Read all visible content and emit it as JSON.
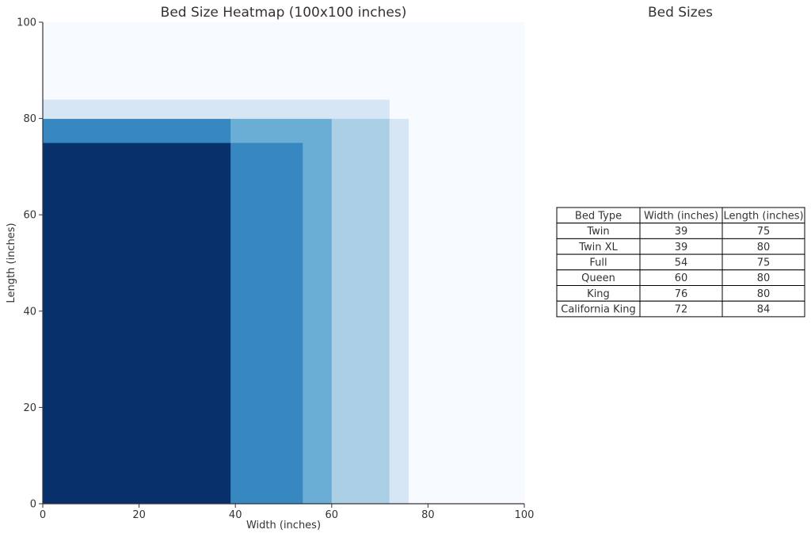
{
  "chart_data": [
    {
      "type": "heatmap",
      "title": "Bed Size Heatmap (100x100 inches)",
      "xlabel": "Width (inches)",
      "ylabel": "Length (inches)",
      "xlim": [
        0,
        100
      ],
      "ylim": [
        0,
        100
      ],
      "x_ticks": [
        "0",
        "20",
        "40",
        "60",
        "80",
        "100"
      ],
      "y_ticks": [
        "0",
        "20",
        "40",
        "60",
        "80",
        "100"
      ],
      "colormap": "Blues",
      "color_scale": {
        "min": 0,
        "max": 6
      },
      "regions_description": "count of beds covering each cell of a 100x100 grid",
      "beds": [
        {
          "name": "Twin",
          "width": 39,
          "length": 75
        },
        {
          "name": "Twin XL",
          "width": 39,
          "length": 80
        },
        {
          "name": "Full",
          "width": 54,
          "length": 75
        },
        {
          "name": "Queen",
          "width": 60,
          "length": 80
        },
        {
          "name": "King",
          "width": 76,
          "length": 80
        },
        {
          "name": "California King",
          "width": 72,
          "length": 84
        }
      ],
      "grid": false
    },
    {
      "type": "table",
      "title": "Bed Sizes",
      "columns": [
        "Bed Type",
        "Width (inches)",
        "Length (inches)"
      ],
      "rows": [
        [
          "Twin",
          "39",
          "75"
        ],
        [
          "Twin XL",
          "39",
          "80"
        ],
        [
          "Full",
          "54",
          "75"
        ],
        [
          "Queen",
          "60",
          "80"
        ],
        [
          "King",
          "76",
          "80"
        ],
        [
          "California King",
          "72",
          "84"
        ]
      ]
    }
  ],
  "colors": {
    "blues_ramp": [
      "#f7fbff",
      "#d6e6f4",
      "#abd0e6",
      "#6aaed6",
      "#3787c0",
      "#3787c0",
      "#08306b"
    ],
    "axis": "#333333",
    "table_border": "#000000"
  }
}
